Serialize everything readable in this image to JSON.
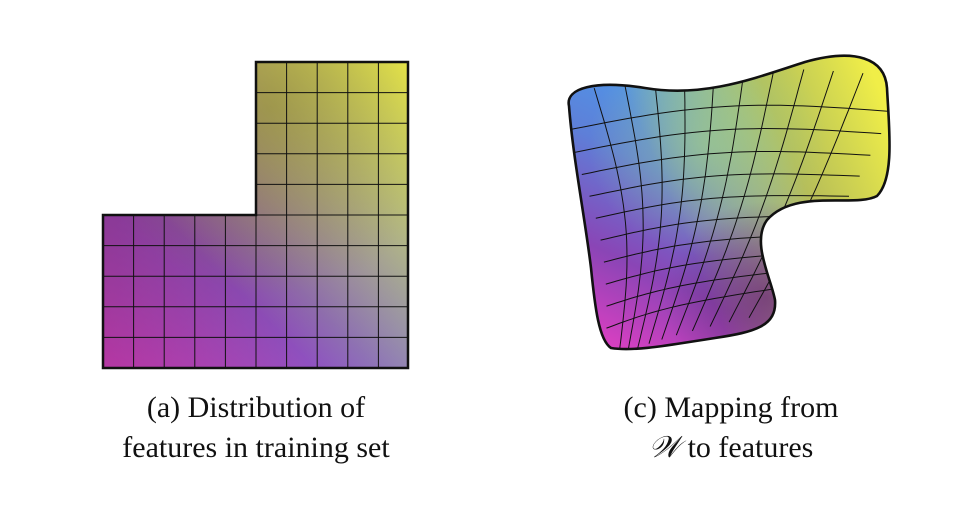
{
  "panels": [
    {
      "id": "a",
      "caption_line1": "(a) Distribution of",
      "caption_line2": "features in training set"
    },
    {
      "id": "c",
      "caption_line1": "(c) Mapping from",
      "caption_line2_symbol": "𝒲",
      "caption_line2_rest": " to features"
    }
  ],
  "colors": {
    "magenta": "#e23fc0",
    "purple": "#7a2a78",
    "blue": "#3aa0f2",
    "yellow": "#f5f346",
    "olive": "#8a8a2a",
    "teal": "#5fb8a8",
    "grid_line": "#111111"
  }
}
